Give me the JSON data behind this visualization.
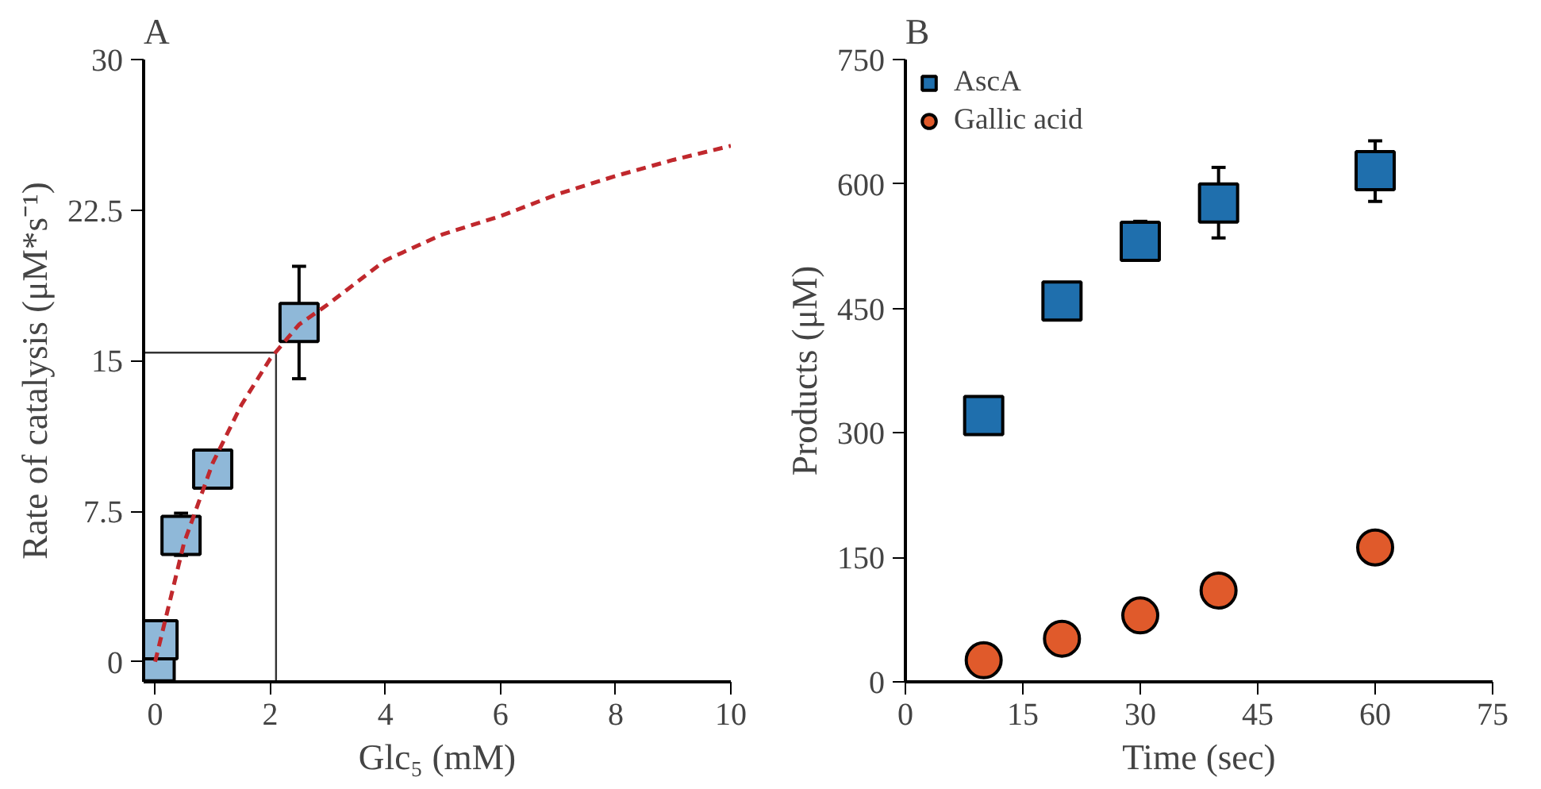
{
  "chart_data": [
    {
      "type": "scatter",
      "title": "A",
      "xlabel": "Glc₅ (mM)",
      "ylabel": "Rate of catalysis (μM*s⁻¹)",
      "xlim": [
        -0.2,
        10
      ],
      "ylim": [
        -1,
        30
      ],
      "xticks": [
        0,
        2,
        4,
        6,
        8,
        10
      ],
      "yticks": [
        {
          "value": 0,
          "label": "0"
        },
        {
          "value": 7.5,
          "label": "7.5"
        },
        {
          "value": 15,
          "label": "15"
        },
        {
          "value": 22.5,
          "label": "22.5"
        },
        {
          "value": 30,
          "label": "30"
        }
      ],
      "grid": false,
      "legend": false,
      "series": [
        {
          "type": "scatter",
          "marker": "square",
          "color": "#8fb8d8",
          "x": [
            0,
            0.05,
            0.45,
            1.0,
            2.5
          ],
          "values": [
            0,
            1.1,
            6.3,
            9.6,
            16.9
          ],
          "errors": [
            null,
            null,
            [
              5.3,
              7.4
            ],
            null,
            [
              14.1,
              19.7
            ]
          ]
        },
        {
          "type": "line",
          "line_style": "dashed",
          "color": "#c0282d",
          "x": [
            0,
            0.5,
            1,
            1.5,
            2,
            2.5,
            3,
            4,
            5,
            6,
            7,
            8,
            9,
            10
          ],
          "values": [
            0,
            5.9,
            9.9,
            12.8,
            15.1,
            16.8,
            17.8,
            20.0,
            21.3,
            22.2,
            23.3,
            24.2,
            25.0,
            25.7
          ]
        }
      ],
      "ref_lines": [
        {
          "axis": "y",
          "value": 15.4,
          "color": "#333333",
          "line_style": "solid"
        },
        {
          "axis": "x",
          "value": 2.1,
          "color": "#333333",
          "line_style": "solid"
        }
      ]
    },
    {
      "type": "scatter",
      "title": "B",
      "xlabel": "Time (sec)",
      "ylabel": "Products (μM)",
      "xlim": [
        0,
        75
      ],
      "ylim": [
        0,
        750
      ],
      "xticks": [
        0,
        15,
        30,
        45,
        60,
        75
      ],
      "yticks": [
        0,
        150,
        300,
        450,
        600,
        750
      ],
      "grid": false,
      "legend": "top left",
      "series": [
        {
          "name": "AscA",
          "marker": "square",
          "color": "#1f6fad",
          "x": [
            10,
            20,
            30,
            40,
            60
          ],
          "values": [
            321,
            459,
            531,
            577,
            616
          ],
          "errors": [
            null,
            null,
            [
              510,
              555
            ],
            [
              535,
              620
            ],
            [
              579,
              652
            ]
          ]
        },
        {
          "name": "Gallic acid",
          "marker": "circle",
          "color": "#e05a2b",
          "x": [
            10,
            20,
            30,
            40,
            60
          ],
          "values": [
            26,
            52,
            80,
            110,
            162
          ]
        }
      ]
    }
  ]
}
